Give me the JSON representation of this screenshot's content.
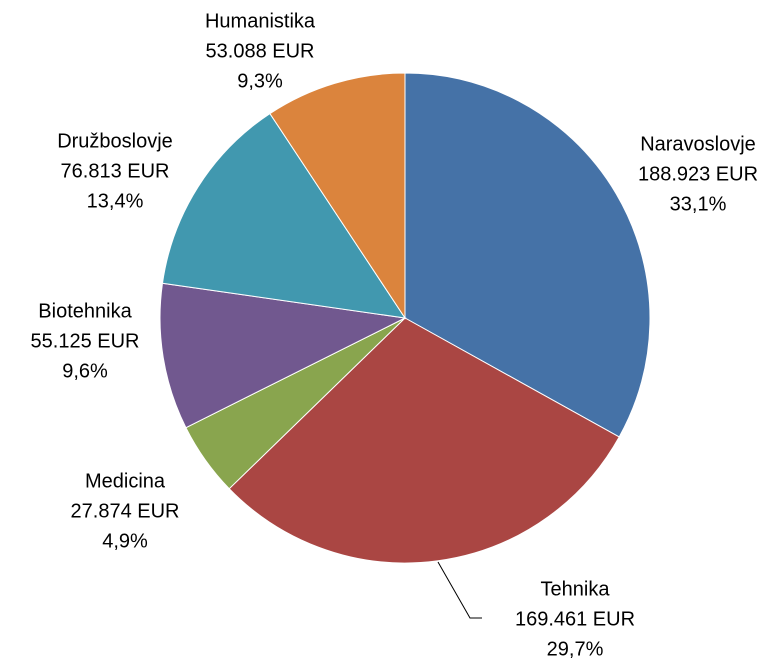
{
  "chart_data": {
    "type": "pie",
    "categories": [
      "Naravoslovje",
      "Tehnika",
      "Medicina",
      "Biotehnika",
      "Družboslovje",
      "Humanistika"
    ],
    "values": [
      188923,
      169461,
      27874,
      55125,
      76813,
      53088
    ],
    "value_labels": [
      "188.923 EUR",
      "169.461 EUR",
      "27.874 EUR",
      "55.125 EUR",
      "76.813 EUR",
      "53.088 EUR"
    ],
    "percentages": [
      33.1,
      29.7,
      4.9,
      9.6,
      13.4,
      9.3
    ],
    "percentage_labels": [
      "33,1%",
      "29,7%",
      "4,9%",
      "9,6%",
      "13,4%",
      "9,3%"
    ],
    "colors": [
      "#4572a7",
      "#aa4643",
      "#89a54e",
      "#71588f",
      "#4198af",
      "#db843d"
    ]
  }
}
